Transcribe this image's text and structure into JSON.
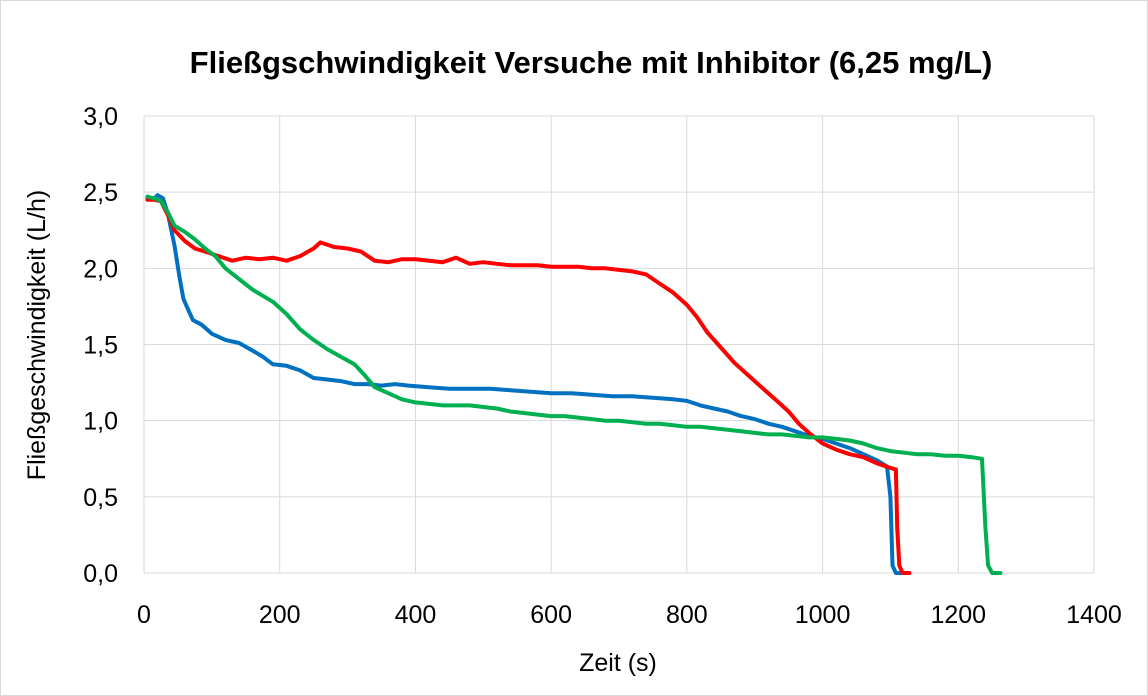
{
  "chart_data": {
    "type": "line",
    "title": "Fließgschwindigkeit Versuche mit Inhibitor (6,25 mg/L)",
    "xlabel": "Zeit (s)",
    "ylabel": "Fließgeschwindigkeit (L/h)",
    "xlim": [
      0,
      1400
    ],
    "ylim": [
      0,
      3
    ],
    "x_ticks": [
      "0",
      "200",
      "400",
      "600",
      "800",
      "1000",
      "1200",
      "1400"
    ],
    "y_ticks": [
      "0,0",
      "0,5",
      "1,0",
      "1,5",
      "2,0",
      "2,5",
      "3,0"
    ],
    "x_tick_values": [
      0,
      200,
      400,
      600,
      800,
      1000,
      1200,
      1400
    ],
    "y_tick_values": [
      0,
      0.5,
      1.0,
      1.5,
      2.0,
      2.5,
      3.0
    ],
    "grid": true,
    "legend": "none",
    "series": [
      {
        "color": "#0070c0",
        "points": [
          [
            5,
            2.46
          ],
          [
            15,
            2.46
          ],
          [
            20,
            2.48
          ],
          [
            28,
            2.46
          ],
          [
            35,
            2.36
          ],
          [
            45,
            2.15
          ],
          [
            52,
            1.95
          ],
          [
            58,
            1.8
          ],
          [
            65,
            1.73
          ],
          [
            72,
            1.66
          ],
          [
            85,
            1.63
          ],
          [
            100,
            1.57
          ],
          [
            120,
            1.53
          ],
          [
            140,
            1.51
          ],
          [
            160,
            1.46
          ],
          [
            175,
            1.42
          ],
          [
            190,
            1.37
          ],
          [
            210,
            1.36
          ],
          [
            230,
            1.33
          ],
          [
            250,
            1.28
          ],
          [
            270,
            1.27
          ],
          [
            290,
            1.26
          ],
          [
            310,
            1.24
          ],
          [
            330,
            1.24
          ],
          [
            350,
            1.23
          ],
          [
            370,
            1.24
          ],
          [
            390,
            1.23
          ],
          [
            420,
            1.22
          ],
          [
            450,
            1.21
          ],
          [
            480,
            1.21
          ],
          [
            510,
            1.21
          ],
          [
            540,
            1.2
          ],
          [
            570,
            1.19
          ],
          [
            600,
            1.18
          ],
          [
            630,
            1.18
          ],
          [
            660,
            1.17
          ],
          [
            690,
            1.16
          ],
          [
            720,
            1.16
          ],
          [
            750,
            1.15
          ],
          [
            780,
            1.14
          ],
          [
            800,
            1.13
          ],
          [
            820,
            1.1
          ],
          [
            840,
            1.08
          ],
          [
            860,
            1.06
          ],
          [
            880,
            1.03
          ],
          [
            900,
            1.01
          ],
          [
            920,
            0.98
          ],
          [
            940,
            0.96
          ],
          [
            960,
            0.93
          ],
          [
            980,
            0.9
          ],
          [
            1000,
            0.88
          ],
          [
            1020,
            0.85
          ],
          [
            1040,
            0.82
          ],
          [
            1060,
            0.78
          ],
          [
            1080,
            0.74
          ],
          [
            1095,
            0.7
          ],
          [
            1100,
            0.5
          ],
          [
            1103,
            0.05
          ],
          [
            1108,
            0.0
          ],
          [
            1120,
            0.0
          ]
        ]
      },
      {
        "color": "#ff0000",
        "points": [
          [
            5,
            2.45
          ],
          [
            15,
            2.45
          ],
          [
            25,
            2.44
          ],
          [
            35,
            2.35
          ],
          [
            45,
            2.25
          ],
          [
            60,
            2.18
          ],
          [
            75,
            2.13
          ],
          [
            90,
            2.11
          ],
          [
            110,
            2.08
          ],
          [
            130,
            2.05
          ],
          [
            150,
            2.07
          ],
          [
            170,
            2.06
          ],
          [
            190,
            2.07
          ],
          [
            210,
            2.05
          ],
          [
            230,
            2.08
          ],
          [
            250,
            2.13
          ],
          [
            260,
            2.17
          ],
          [
            280,
            2.14
          ],
          [
            300,
            2.13
          ],
          [
            320,
            2.11
          ],
          [
            340,
            2.05
          ],
          [
            360,
            2.04
          ],
          [
            380,
            2.06
          ],
          [
            400,
            2.06
          ],
          [
            420,
            2.05
          ],
          [
            440,
            2.04
          ],
          [
            460,
            2.07
          ],
          [
            480,
            2.03
          ],
          [
            500,
            2.04
          ],
          [
            520,
            2.03
          ],
          [
            540,
            2.02
          ],
          [
            560,
            2.02
          ],
          [
            580,
            2.02
          ],
          [
            600,
            2.01
          ],
          [
            620,
            2.01
          ],
          [
            640,
            2.01
          ],
          [
            660,
            2.0
          ],
          [
            680,
            2.0
          ],
          [
            700,
            1.99
          ],
          [
            720,
            1.98
          ],
          [
            740,
            1.96
          ],
          [
            760,
            1.9
          ],
          [
            780,
            1.84
          ],
          [
            800,
            1.76
          ],
          [
            815,
            1.68
          ],
          [
            830,
            1.58
          ],
          [
            850,
            1.48
          ],
          [
            870,
            1.38
          ],
          [
            890,
            1.3
          ],
          [
            910,
            1.22
          ],
          [
            930,
            1.14
          ],
          [
            950,
            1.06
          ],
          [
            965,
            0.98
          ],
          [
            980,
            0.92
          ],
          [
            1000,
            0.85
          ],
          [
            1020,
            0.81
          ],
          [
            1040,
            0.78
          ],
          [
            1060,
            0.76
          ],
          [
            1080,
            0.72
          ],
          [
            1100,
            0.69
          ],
          [
            1108,
            0.68
          ],
          [
            1110,
            0.3
          ],
          [
            1113,
            0.05
          ],
          [
            1118,
            0.0
          ],
          [
            1128,
            0.0
          ]
        ]
      },
      {
        "color": "#00b050",
        "points": [
          [
            5,
            2.47
          ],
          [
            15,
            2.46
          ],
          [
            25,
            2.44
          ],
          [
            35,
            2.37
          ],
          [
            45,
            2.28
          ],
          [
            60,
            2.24
          ],
          [
            75,
            2.19
          ],
          [
            90,
            2.13
          ],
          [
            105,
            2.08
          ],
          [
            120,
            2.0
          ],
          [
            140,
            1.93
          ],
          [
            160,
            1.86
          ],
          [
            175,
            1.82
          ],
          [
            190,
            1.78
          ],
          [
            210,
            1.7
          ],
          [
            230,
            1.6
          ],
          [
            250,
            1.53
          ],
          [
            270,
            1.47
          ],
          [
            290,
            1.42
          ],
          [
            310,
            1.37
          ],
          [
            325,
            1.3
          ],
          [
            340,
            1.22
          ],
          [
            360,
            1.18
          ],
          [
            380,
            1.14
          ],
          [
            400,
            1.12
          ],
          [
            420,
            1.11
          ],
          [
            440,
            1.1
          ],
          [
            460,
            1.1
          ],
          [
            480,
            1.1
          ],
          [
            500,
            1.09
          ],
          [
            520,
            1.08
          ],
          [
            540,
            1.06
          ],
          [
            560,
            1.05
          ],
          [
            580,
            1.04
          ],
          [
            600,
            1.03
          ],
          [
            620,
            1.03
          ],
          [
            640,
            1.02
          ],
          [
            660,
            1.01
          ],
          [
            680,
            1.0
          ],
          [
            700,
            1.0
          ],
          [
            720,
            0.99
          ],
          [
            740,
            0.98
          ],
          [
            760,
            0.98
          ],
          [
            780,
            0.97
          ],
          [
            800,
            0.96
          ],
          [
            820,
            0.96
          ],
          [
            840,
            0.95
          ],
          [
            860,
            0.94
          ],
          [
            880,
            0.93
          ],
          [
            900,
            0.92
          ],
          [
            920,
            0.91
          ],
          [
            940,
            0.91
          ],
          [
            960,
            0.9
          ],
          [
            980,
            0.89
          ],
          [
            1000,
            0.89
          ],
          [
            1020,
            0.88
          ],
          [
            1040,
            0.87
          ],
          [
            1060,
            0.85
          ],
          [
            1080,
            0.82
          ],
          [
            1100,
            0.8
          ],
          [
            1120,
            0.79
          ],
          [
            1140,
            0.78
          ],
          [
            1160,
            0.78
          ],
          [
            1180,
            0.77
          ],
          [
            1200,
            0.77
          ],
          [
            1220,
            0.76
          ],
          [
            1235,
            0.75
          ],
          [
            1240,
            0.3
          ],
          [
            1244,
            0.05
          ],
          [
            1250,
            0.0
          ],
          [
            1262,
            0.0
          ]
        ]
      }
    ]
  }
}
